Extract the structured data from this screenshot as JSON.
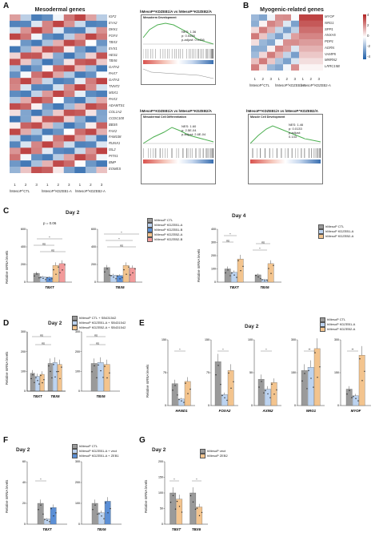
{
  "panels": {
    "A": {
      "letter": "A",
      "heatmap_title": "Mesodermal genes",
      "genes": [
        "IGF2",
        "EYA2",
        "DKK1",
        "FGF4",
        "TBX3",
        "EVX1",
        "HES1",
        "TBX6",
        "GATA2",
        "PAX7",
        "GATA3",
        "TNNT2",
        "MSX1",
        "PAX3",
        "ADAMTS1",
        "COL1A2",
        "CCDC100",
        "BBS5",
        "FAX2",
        "FAM108",
        "RUNX1",
        "ISL2",
        "PITX1",
        "BMP",
        "EOMES"
      ],
      "col_numbers": [
        "1",
        "2",
        "3",
        "1",
        "2",
        "3",
        "1",
        "2",
        "3"
      ],
      "groups": [
        "hMesoP^CTL",
        "hMesoP^KDZEB1-A",
        "hMesoP^KDZEB2-A"
      ],
      "gsea": [
        {
          "header": "hMesoP^KDZEB1/A vs hMesoP^KDZEB2/A",
          "title": "Mesoderm Development",
          "stat": "NES: 1.36\np: 0.5458\np-adjust: 0.0456"
        },
        {
          "header": "hMesoP^KDZEB1/A vs hMesoP^KDZEB2/A",
          "title": "Mesodermal Cell Differentiation",
          "stat": "NES: 1.60\np: 2.5E-04\np.adjust: 2.6E-04"
        }
      ]
    },
    "B": {
      "letter": "B",
      "heatmap_title": "Myogenic-related genes",
      "genes": [
        "MYOF",
        "NRG1",
        "SPP1",
        "ANXA5",
        "PDP1",
        "AGRN",
        "VAMP5",
        "MMRN2",
        "LRRC15B"
      ],
      "col_numbers": [
        "1",
        "2",
        "3",
        "1",
        "2",
        "3",
        "1",
        "2",
        "3"
      ],
      "groups": [
        "hMesoP^CTL",
        "hMesoP^KDZEB1-A",
        "hMesoP^KDZEB2-A"
      ],
      "gsea": [
        {
          "header": "hMesoP^KDZEB1/A vs hMesoP^KDZEB2/A",
          "title": "Muscle Cell Development",
          "stat": "NES: 1.46\np: 0.0133\np.adjust:\n0.133"
        }
      ],
      "legend_ticks": [
        "4",
        "2",
        "0",
        "-2",
        "-4"
      ]
    },
    "C": {
      "letter": "C",
      "day2_title": "Day 2",
      "day4_title": "Day 4",
      "ylabel": "Relative mRNA levels",
      "p_annot": "p = 0.06",
      "sig": "*",
      "ns": "ns",
      "legend_day2": [
        "hMesoP CTL",
        "hMesoP KDZEB1-A",
        "hMesoP KDZEB1-B",
        "hMesoP KDZEB2-A",
        "hMesoP KDZEB2-B"
      ],
      "legend_day4": [
        "hMesoP CTL",
        "hMesoP KDZEB1-A",
        "hMesoP KDZEB2-A"
      ]
    },
    "D": {
      "letter": "D",
      "title": "Day 2",
      "legend": [
        "hMesoP CTL + SB431542",
        "hMesoP KDZEB1-A + SB431542",
        "hMesoP KDZEB2-A + SB431542"
      ]
    },
    "E": {
      "letter": "E",
      "title": "Day 2",
      "legend": [
        "hMesoP CTL",
        "hMesoP KDZEB1-A",
        "hMesoP KDZEB2-A"
      ],
      "genes": [
        "HAND1",
        "FOXA2",
        "AXIN2",
        "NRG1",
        "MYOF"
      ],
      "sig2": "**"
    },
    "F": {
      "letter": "F",
      "title": "Day 2",
      "legend": [
        "hMesoP CTL",
        "hMesoP KDZEB1-A + vect",
        "hMesoP KDZEB1-A + ZEB1"
      ]
    },
    "G": {
      "letter": "G",
      "title": "Day 2",
      "legend": [
        "hMesoP vect",
        "hMesoP ZEB2"
      ]
    }
  },
  "chart_data": [
    {
      "type": "bar",
      "panel": "C",
      "title": "Day 2",
      "categories": [
        "TBXT"
      ],
      "ylabel": "Relative mRNA levels",
      "ylim": [
        0,
        600
      ],
      "series": [
        {
          "name": "hMesoP CTL",
          "values": [
            100
          ]
        },
        {
          "name": "hMesoP KDZEB1-A",
          "values": [
            60
          ]
        },
        {
          "name": "hMesoP KDZEB1-B",
          "values": [
            55
          ]
        },
        {
          "name": "hMesoP KDZEB2-A",
          "values": [
            190
          ]
        },
        {
          "name": "hMesoP KDZEB2-B",
          "values": [
            210
          ]
        }
      ]
    },
    {
      "type": "bar",
      "panel": "C",
      "title": "Day 2",
      "categories": [
        "TBX6"
      ],
      "ylim": [
        0,
        600
      ],
      "series": [
        {
          "name": "hMesoP CTL",
          "values": [
            165
          ]
        },
        {
          "name": "hMesoP KDZEB1-A",
          "values": [
            80
          ]
        },
        {
          "name": "hMesoP KDZEB1-B",
          "values": [
            75
          ]
        },
        {
          "name": "hMesoP KDZEB2-A",
          "values": [
            190
          ]
        },
        {
          "name": "hMesoP KDZEB2-B",
          "values": [
            160
          ]
        }
      ]
    },
    {
      "type": "bar",
      "panel": "C",
      "title": "Day 4",
      "categories": [
        "TBXT",
        "TBX6"
      ],
      "ylabel": "Relative mRNA levels",
      "ylim": [
        0,
        400
      ],
      "series": [
        {
          "name": "hMesoP CTL",
          "values": [
            100,
            55
          ]
        },
        {
          "name": "hMesoP KDZEB1-A",
          "values": [
            75,
            20
          ]
        },
        {
          "name": "hMesoP KDZEB2-A",
          "values": [
            175,
            140
          ]
        }
      ]
    },
    {
      "type": "bar",
      "panel": "D",
      "title": "Day 2",
      "categories": [
        "TBXT",
        "TBX6"
      ],
      "ylabel": "Relative mRNA levels",
      "ylim": [
        0,
        300
      ],
      "series": [
        {
          "name": "hMesoP CTL + SB431542",
          "values": [
            90,
            140
          ]
        },
        {
          "name": "hMesoP KDZEB1-A + SB431542",
          "values": [
            75,
            145
          ]
        },
        {
          "name": "hMesoP KDZEB2-A + SB431542",
          "values": [
            85,
            135
          ]
        }
      ]
    },
    {
      "type": "bar",
      "panel": "E",
      "title": "Day 2",
      "categories": [
        "HAND1",
        "FOXA2",
        "AXIN2",
        "NRG1",
        "MYOF"
      ],
      "ylabel": "Relative mRNA levels",
      "series": [
        {
          "name": "hMesoP CTL",
          "values": [
            50,
            100,
            40,
            160,
            75
          ]
        },
        {
          "name": "hMesoP KDZEB1-A",
          "values": [
            15,
            25,
            25,
            175,
            45
          ]
        },
        {
          "name": "hMesoP KDZEB2-A",
          "values": [
            55,
            80,
            35,
            260,
            230
          ]
        }
      ]
    },
    {
      "type": "bar",
      "panel": "F",
      "title": "Day 2",
      "categories": [
        "TBXT",
        "TBX6"
      ],
      "ylabel": "Relative mRNA levels",
      "series": [
        {
          "name": "hMesoP CTL",
          "values": [
            20,
            100
          ]
        },
        {
          "name": "hMesoP KDZEB1-A + vect",
          "values": [
            5,
            55
          ]
        },
        {
          "name": "hMesoP KDZEB1-A + ZEB1",
          "values": [
            16,
            110
          ]
        }
      ]
    },
    {
      "type": "bar",
      "panel": "G",
      "title": "Day 2",
      "categories": [
        "TBXT",
        "TBX6"
      ],
      "ylabel": "Relative mRNA levels",
      "ylim": [
        0,
        200
      ],
      "series": [
        {
          "name": "hMesoP vect",
          "values": [
            100,
            100
          ]
        },
        {
          "name": "hMesoP ZEB2",
          "values": [
            80,
            55
          ]
        }
      ]
    }
  ],
  "colors": {
    "ctl": "#9a9a9a",
    "kd1": "#bcd3f0",
    "kd1b": "#5b8fd6",
    "kd2": "#f3c48e",
    "kd2b": "#f29a9a",
    "hm_red": "#c0392b",
    "hm_blue": "#2c6aa8"
  }
}
